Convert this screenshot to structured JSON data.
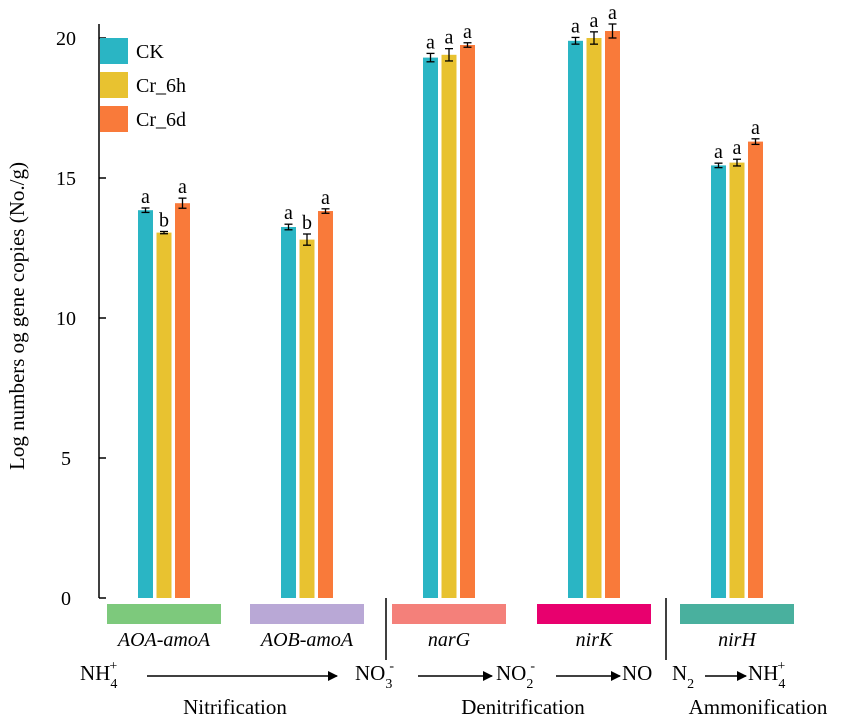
{
  "chart_data": {
    "type": "bar",
    "ylabel": "Log numbers og gene copies (No./g)",
    "ylim": [
      0,
      20
    ],
    "yticks": [
      "0",
      "5",
      "10",
      "15",
      "20"
    ],
    "categories": [
      "AOA-amoA",
      "AOB-amoA",
      "narG",
      "nirK",
      "nirH"
    ],
    "category_colors": [
      "#7dc97c",
      "#b9a8d6",
      "#f4807a",
      "#e8006e",
      "#49b09e"
    ],
    "series": [
      {
        "name": "CK",
        "color": "#2ab5c4",
        "values": [
          13.85,
          13.25,
          19.3,
          19.9,
          15.45
        ],
        "errors": [
          0.08,
          0.1,
          0.15,
          0.12,
          0.08
        ],
        "letters": [
          "a",
          "a",
          "a",
          "a",
          "a"
        ]
      },
      {
        "name": "Cr_6h",
        "color": "#e8c230",
        "values": [
          13.05,
          12.8,
          19.4,
          20.0,
          15.55
        ],
        "errors": [
          0.04,
          0.2,
          0.22,
          0.22,
          0.12
        ],
        "letters": [
          "b",
          "b",
          "a",
          "a",
          "a"
        ]
      },
      {
        "name": "Cr_6d",
        "color": "#f97a3a",
        "values": [
          14.1,
          13.82,
          19.75,
          20.25,
          16.3
        ],
        "errors": [
          0.18,
          0.08,
          0.08,
          0.25,
          0.1
        ],
        "letters": [
          "a",
          "a",
          "a",
          "a",
          "a"
        ]
      }
    ],
    "legend": [
      "CK",
      "Cr_6h",
      "Cr_6d"
    ],
    "processes": [
      "Nitrification",
      "Denitrification",
      "Ammonification"
    ],
    "chemistry": {
      "nh4_base": "NH",
      "nh4_sub": "4",
      "nh4_sup": "+",
      "no3_base": "NO",
      "no3_sub": "3",
      "no3_sup": "-",
      "no2_base": "NO",
      "no2_sub": "2",
      "no2_sup": "-",
      "no": "NO",
      "n2_base": "N",
      "n2_sub": "2"
    }
  }
}
